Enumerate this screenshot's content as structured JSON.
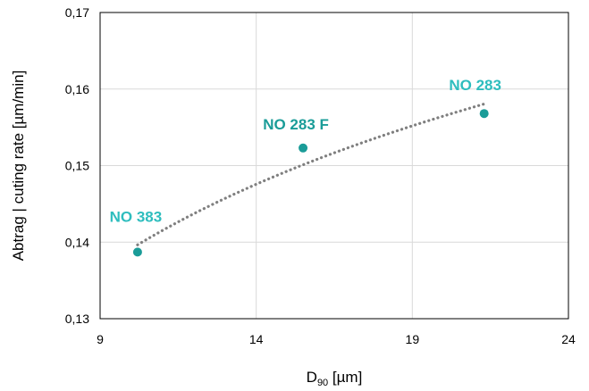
{
  "chart_data": {
    "type": "scatter",
    "title": "",
    "xlabel": "D",
    "xlabel_sub": "90",
    "xlabel_unit": " [µm]",
    "ylabel": "Abtrag | cuting rate [µm/min]",
    "xlim": [
      9,
      24
    ],
    "ylim": [
      0.13,
      0.17
    ],
    "x_ticks": [
      9,
      14,
      19,
      24
    ],
    "y_ticks": [
      0.13,
      0.14,
      0.15,
      0.16,
      0.17
    ],
    "x_tick_labels": [
      "9",
      "14",
      "19",
      "24"
    ],
    "y_tick_labels": [
      "0,13",
      "0,14",
      "0,15",
      "0,16",
      "0,17"
    ],
    "grid": true,
    "legend": "none",
    "points": [
      {
        "x": 10.2,
        "y": 0.1387,
        "label": "NO 383",
        "label_color": "#2EBDBE"
      },
      {
        "x": 15.5,
        "y": 0.1523,
        "label": "NO 283 F",
        "label_color": "#1A9C98"
      },
      {
        "x": 21.3,
        "y": 0.1568,
        "label": "NO 283",
        "label_color": "#2EBDBE"
      }
    ],
    "trendline": {
      "type": "logarithmic",
      "style": "dotted"
    },
    "colors": {
      "marker": "#1A9C98",
      "trendline": "#7F7F7F",
      "grid": "#D9D9D9",
      "axis": "#000000"
    }
  }
}
